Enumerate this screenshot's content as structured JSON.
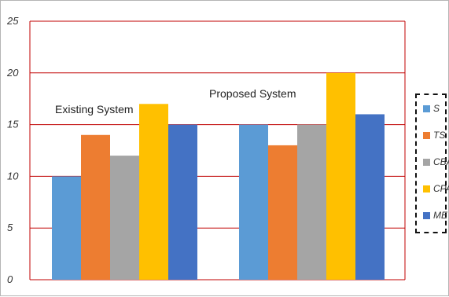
{
  "chart_data": {
    "type": "bar",
    "title": "",
    "xlabel": "",
    "ylabel": "",
    "ylim": [
      0,
      25
    ],
    "yticks": [
      0,
      5,
      10,
      15,
      20,
      25
    ],
    "grid": true,
    "legend_position": "right",
    "groups": [
      {
        "name": "Existing System",
        "annotation": "Existing System"
      },
      {
        "name": "Proposed System",
        "annotation": "Proposed System"
      }
    ],
    "series": [
      {
        "name": "S",
        "color": "#5b9bd5",
        "values": [
          10,
          15
        ]
      },
      {
        "name": "TS",
        "color": "#ed7d31",
        "values": [
          14,
          13
        ]
      },
      {
        "name": "CBA",
        "color": "#a5a5a5",
        "values": [
          12,
          15
        ]
      },
      {
        "name": "CPA",
        "color": "#ffc000",
        "values": [
          17,
          20
        ]
      },
      {
        "name": "ME",
        "color": "#4472c4",
        "values": [
          15,
          16
        ]
      }
    ],
    "gridline_color": "#c00000",
    "axis_color": "#c00000"
  }
}
